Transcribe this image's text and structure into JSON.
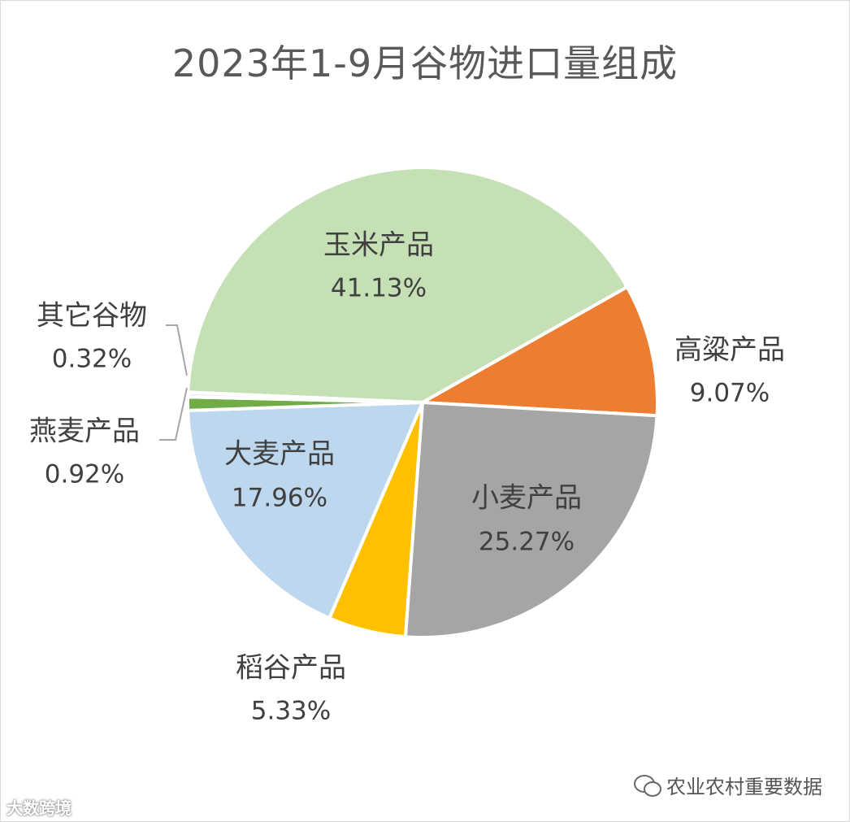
{
  "title": "2023年1-9月谷物进口量组成",
  "chart_data": {
    "type": "pie",
    "title": "2023年1-9月谷物进口量组成",
    "slices": [
      {
        "name": "玉米产品",
        "value": 41.13,
        "label": "41.13%",
        "color": "#c5e0b4"
      },
      {
        "name": "高粱产品",
        "value": 9.07,
        "label": "9.07%",
        "color": "#ed7d31"
      },
      {
        "name": "小麦产品",
        "value": 25.27,
        "label": "25.27%",
        "color": "#a5a5a5"
      },
      {
        "name": "稻谷产品",
        "value": 5.33,
        "label": "5.33%",
        "color": "#ffc000"
      },
      {
        "name": "大麦产品",
        "value": 17.96,
        "label": "17.96%",
        "color": "#bdd7ee"
      },
      {
        "name": "燕麦产品",
        "value": 0.92,
        "label": "0.92%",
        "color": "#70ad47"
      },
      {
        "name": "其它谷物",
        "value": 0.32,
        "label": "0.32%",
        "color": "#f2f2f2"
      }
    ],
    "data_labels": "name and percentage",
    "legend": "none"
  },
  "watermark": {
    "left": "大数跨境",
    "right": "农业农村重要数据"
  }
}
